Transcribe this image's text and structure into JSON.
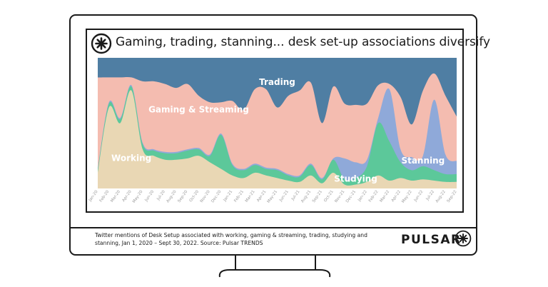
{
  "header": {
    "title": "Gaming, trading, stanning... desk set-up associations diversify",
    "logo_icon": "pulsar-burst-icon"
  },
  "footer": {
    "caption": "Twitter mentions of Desk Setup associated with working, gaming & streaming, trading, studying and stanning, Jan 1, 2020 – Sept 30, 2022. Source: Pulsar TRENDS",
    "brand": "PULSAR"
  },
  "chart_data": {
    "type": "area",
    "stacked": true,
    "normalized": true,
    "grid": false,
    "legend": "inline labels",
    "categories": [
      "Jan-20",
      "Feb-20",
      "Mar-20",
      "Apr-20",
      "May-20",
      "Jun-20",
      "Jul-20",
      "Aug-20",
      "Sep-20",
      "Oct-20",
      "Nov-20",
      "Dec-20",
      "Jan-21",
      "Feb-21",
      "Mar-21",
      "Apr-21",
      "May-21",
      "Jun-21",
      "Jul-21",
      "Aug-21",
      "Sep-21",
      "Oct-21",
      "Nov-21",
      "Dec-21",
      "Jan-22",
      "Feb-22",
      "Mar-22",
      "Apr-22",
      "May-22",
      "Jun-22",
      "Jul-22",
      "Aug-22",
      "Sep-22"
    ],
    "series": [
      {
        "name": "Working",
        "color": "#e9d7b4",
        "values": [
          12,
          62,
          50,
          75,
          30,
          25,
          22,
          22,
          23,
          25,
          20,
          15,
          10,
          8,
          12,
          10,
          8,
          6,
          5,
          10,
          4,
          12,
          3,
          3,
          5,
          10,
          6,
          8,
          6,
          7,
          6,
          5,
          5
        ]
      },
      {
        "name": "Studying",
        "color": "#5cc89a",
        "values": [
          2,
          3,
          3,
          3,
          4,
          4,
          5,
          5,
          6,
          5,
          5,
          26,
          8,
          6,
          6,
          5,
          6,
          4,
          4,
          8,
          3,
          10,
          4,
          5,
          12,
          40,
          30,
          12,
          8,
          10,
          8,
          6,
          6
        ]
      },
      {
        "name": "Stanning",
        "color": "#8fa9d9",
        "values": [
          1,
          1,
          1,
          1,
          1,
          1,
          1,
          1,
          1,
          1,
          1,
          1,
          1,
          1,
          1,
          1,
          1,
          1,
          1,
          1,
          1,
          1,
          16,
          12,
          5,
          4,
          40,
          10,
          10,
          8,
          54,
          15,
          10
        ]
      },
      {
        "name": "Gaming & Streaming",
        "color": "#f4bcb0",
        "values": [
          70,
          19,
          31,
          6,
          47,
          52,
          52,
          49,
          50,
          40,
          40,
          24,
          48,
          45,
          57,
          60,
          47,
          60,
          65,
          62,
          42,
          55,
          42,
          44,
          43,
          25,
          4,
          40,
          25,
          50,
          20,
          45,
          34
        ]
      },
      {
        "name": "Trading",
        "color": "#4f7ea3",
        "values": [
          15,
          15,
          15,
          15,
          18,
          18,
          20,
          23,
          20,
          29,
          34,
          34,
          33,
          40,
          24,
          24,
          38,
          29,
          25,
          19,
          50,
          22,
          35,
          36,
          35,
          21,
          20,
          30,
          51,
          25,
          12,
          29,
          45
        ]
      }
    ]
  }
}
